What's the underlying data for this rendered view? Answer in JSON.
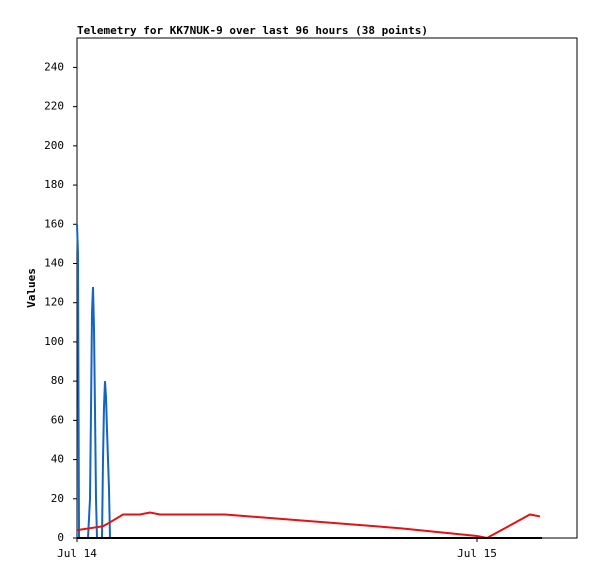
{
  "chart_data": {
    "type": "line",
    "title": "Telemetry for KK7NUK-9 over last 96 hours (38 points)",
    "y_label": "Values",
    "xlim": [
      0,
      30
    ],
    "ylim": [
      0,
      255
    ],
    "xticks": [
      {
        "value": 0,
        "label": "Jul 14"
      },
      {
        "value": 24,
        "label": "Jul 15"
      }
    ],
    "yticks": [
      0,
      20,
      40,
      60,
      80,
      100,
      120,
      140,
      160,
      180,
      200,
      220,
      240
    ],
    "series": [
      {
        "color": "#1565c0",
        "x": [
          0,
          0.06,
          0.12,
          0.66,
          0.78,
          0.84,
          0.9,
          0.96,
          1.02,
          1.08,
          1.14,
          1.2,
          1.5,
          1.56,
          1.62,
          1.68,
          1.74,
          1.8,
          1.86,
          1.92,
          1.98
        ],
        "values": [
          160,
          145,
          0,
          0,
          20,
          65,
          115,
          128,
          107,
          65,
          20,
          0,
          0,
          40,
          67,
          80,
          72,
          55,
          40,
          25,
          0
        ]
      },
      {
        "color": "#e81010",
        "x": [
          0,
          0.78,
          1.56,
          1.98,
          2.76,
          3.78,
          4.38,
          4.98,
          8.88,
          13.38,
          19.38,
          24,
          24.6,
          27.18,
          27.78
        ],
        "values": [
          4,
          5,
          6,
          8,
          12,
          12,
          13,
          12,
          12,
          9,
          5,
          1,
          0,
          12,
          11
        ]
      },
      {
        "color": "#000000",
        "x": [
          0,
          27.9
        ],
        "values": [
          0,
          0
        ]
      }
    ]
  }
}
